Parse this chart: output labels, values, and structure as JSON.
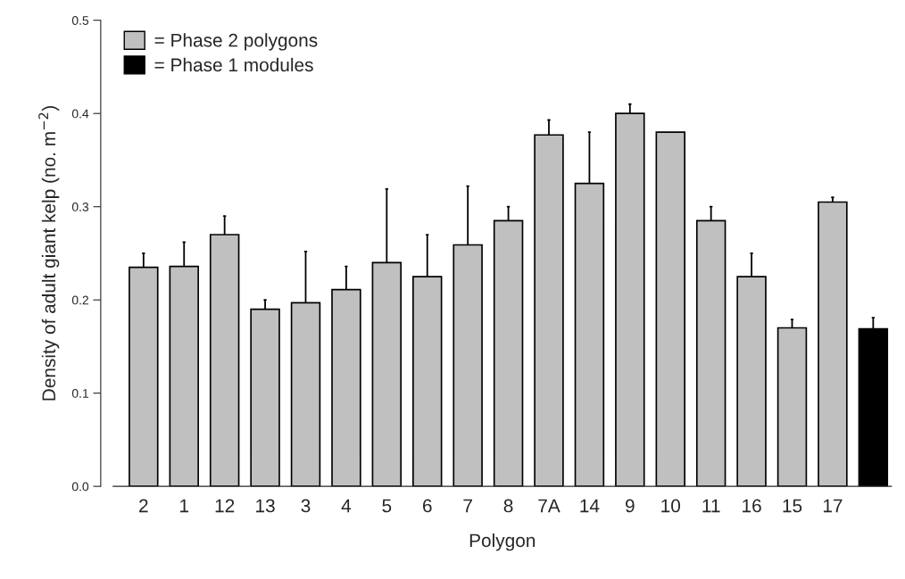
{
  "chart_data": {
    "type": "bar",
    "xlabel": "Polygon",
    "ylabel": "Density of adult giant kelp (no. m$^{−2}$)",
    "categories": [
      "2",
      "1",
      "12",
      "13",
      "3",
      "4",
      "5",
      "6",
      "7",
      "8",
      "7A",
      "14",
      "9",
      "10",
      "11",
      "16",
      "15",
      "17",
      null
    ],
    "series": [
      {
        "name": "= Phase 2 polygons",
        "color": "#c0c0c0",
        "values": [
          0.235,
          0.236,
          0.27,
          0.19,
          0.197,
          0.211,
          0.24,
          0.225,
          0.259,
          0.285,
          0.377,
          0.325,
          0.4,
          0.38,
          0.285,
          0.225,
          0.17,
          0.305,
          null
        ],
        "errors": [
          [
            0.235,
            0.25
          ],
          [
            0.236,
            0.262
          ],
          [
            0.27,
            0.29
          ],
          [
            0.19,
            0.2
          ],
          [
            0.197,
            0.252
          ],
          [
            0.211,
            0.236
          ],
          [
            0.24,
            0.319
          ],
          [
            0.225,
            0.27
          ],
          [
            0.259,
            0.322
          ],
          [
            0.285,
            0.3
          ],
          [
            0.377,
            0.393
          ],
          [
            0.325,
            0.38
          ],
          [
            0.4,
            0.41
          ],
          null,
          [
            0.285,
            0.3
          ],
          [
            0.225,
            0.25
          ],
          [
            0.17,
            0.179
          ],
          [
            0.305,
            0.31
          ],
          null
        ]
      },
      {
        "name": "= Phase 1 modules",
        "color": "#000000",
        "values": [
          null,
          null,
          null,
          null,
          null,
          null,
          null,
          null,
          null,
          null,
          null,
          null,
          null,
          null,
          null,
          null,
          null,
          null,
          0.169
        ],
        "errors": [
          null,
          null,
          null,
          null,
          null,
          null,
          null,
          null,
          null,
          null,
          null,
          null,
          null,
          null,
          null,
          null,
          null,
          null,
          [
            0.169,
            0.181
          ]
        ]
      }
    ],
    "ylim": [
      0,
      0.5
    ],
    "yticks": [
      {
        "value": 0,
        "label": "0.0"
      },
      0.1,
      0.2,
      0.3,
      0.4,
      0.5
    ],
    "grid": false,
    "legend": "top left"
  }
}
